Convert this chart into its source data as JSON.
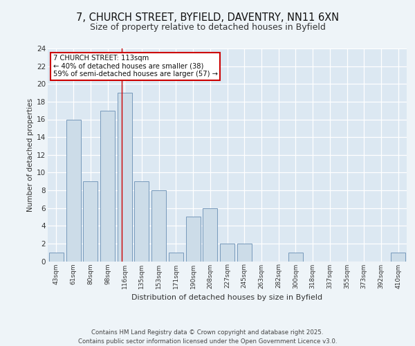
{
  "title1": "7, CHURCH STREET, BYFIELD, DAVENTRY, NN11 6XN",
  "title2": "Size of property relative to detached houses in Byfield",
  "xlabel": "Distribution of detached houses by size in Byfield",
  "ylabel": "Number of detached properties",
  "categories": [
    "43sqm",
    "61sqm",
    "80sqm",
    "98sqm",
    "116sqm",
    "135sqm",
    "153sqm",
    "171sqm",
    "190sqm",
    "208sqm",
    "227sqm",
    "245sqm",
    "263sqm",
    "282sqm",
    "300sqm",
    "318sqm",
    "337sqm",
    "355sqm",
    "373sqm",
    "392sqm",
    "410sqm"
  ],
  "values": [
    1,
    16,
    9,
    17,
    19,
    9,
    8,
    1,
    5,
    6,
    2,
    2,
    0,
    0,
    1,
    0,
    0,
    0,
    0,
    0,
    1
  ],
  "bar_color": "#ccdce8",
  "bar_edge_color": "#7799bb",
  "background_color": "#dce8f2",
  "plot_bg_color": "#dce8f2",
  "fig_bg_color": "#eef4f8",
  "red_line_x": 3.82,
  "annotation_text": "7 CHURCH STREET: 113sqm\n← 40% of detached houses are smaller (38)\n59% of semi-detached houses are larger (57) →",
  "annotation_box_color": "#ffffff",
  "annotation_box_edge": "#cc0000",
  "footer": "Contains HM Land Registry data © Crown copyright and database right 2025.\nContains public sector information licensed under the Open Government Licence v3.0.",
  "ylim": [
    0,
    24
  ],
  "yticks": [
    0,
    2,
    4,
    6,
    8,
    10,
    12,
    14,
    16,
    18,
    20,
    22,
    24
  ]
}
